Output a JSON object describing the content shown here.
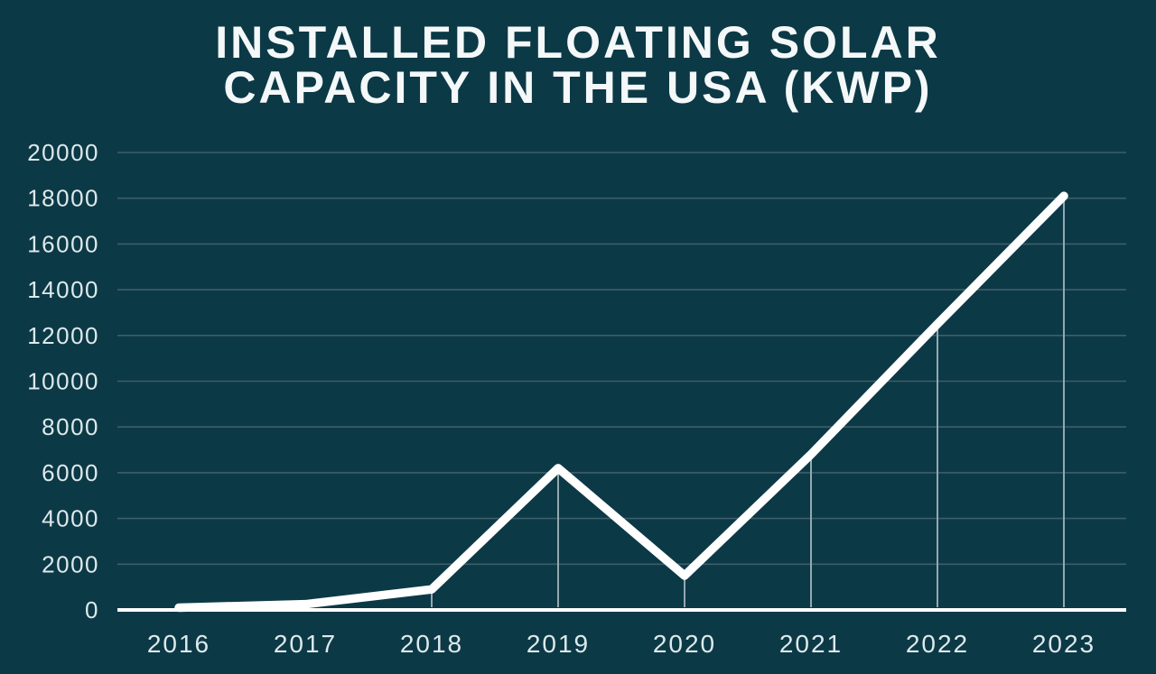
{
  "page": {
    "title_lines": [
      "INSTALLED FLOATING SOLAR",
      "CAPACITY IN THE USA (KWP)"
    ]
  },
  "colors": {
    "background": "#0c3946",
    "title_text": "#f4f8f9",
    "tick_text": "#dde9ec",
    "gridline": "#3e5e6a",
    "axis_line": "#ffffff",
    "data_line": "#ffffff",
    "drop_line": "#93a9b1"
  },
  "chart_data": {
    "type": "line",
    "title": "INSTALLED FLOATING SOLAR CAPACITY IN THE USA (KWP)",
    "categories": [
      "2016",
      "2017",
      "2018",
      "2019",
      "2020",
      "2021",
      "2022",
      "2023"
    ],
    "values": [
      100,
      250,
      900,
      6200,
      1500,
      6800,
      12500,
      18100
    ],
    "units": "kWp",
    "xlabel": "",
    "ylabel": "",
    "ylim": [
      0,
      20000
    ],
    "yticks": [
      0,
      2000,
      4000,
      6000,
      8000,
      10000,
      12000,
      14000,
      16000,
      18000,
      20000
    ],
    "grid": true,
    "legend": "none",
    "drop_lines": true
  }
}
